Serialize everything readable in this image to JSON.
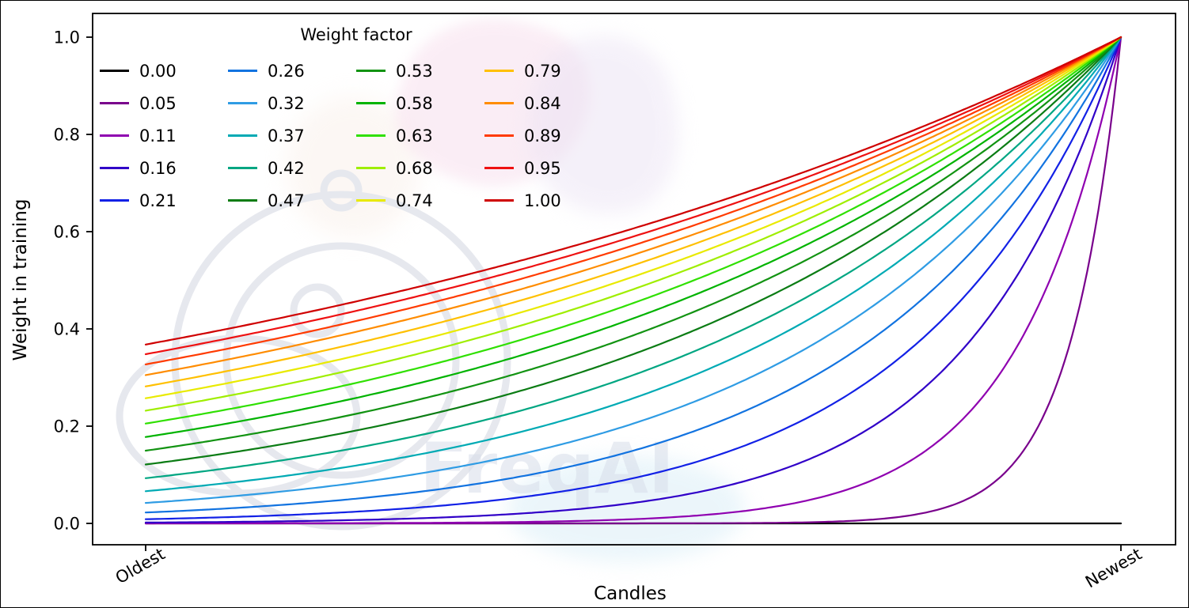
{
  "watermark": {
    "text": "FreqAI"
  },
  "chart_data": {
    "type": "line",
    "title": "",
    "xlabel": "Candles",
    "ylabel": "Weight in training",
    "xtick_labels": [
      "Oldest",
      "Newest"
    ],
    "ytick_labels": [
      "0.0",
      "0.2",
      "0.4",
      "0.6",
      "0.8",
      "1.0"
    ],
    "yticks": [
      0.0,
      0.2,
      0.4,
      0.6,
      0.8,
      1.0
    ],
    "ylim": [
      0,
      1
    ],
    "x_axis": {
      "normalized_range": [
        0,
        1
      ],
      "left_label": "Oldest",
      "right_label": "Newest"
    },
    "grid": false,
    "legend_title": "Weight factor",
    "legend_position": "upper left, 4 columns, column-major order",
    "formula": "weight(x) = exp(-(1 - x) / factor) for x in [0,1] from Oldest to Newest; factor = 0 gives a flat weight of 0",
    "series": [
      {
        "label": "0.00",
        "factor": 0.0,
        "color": "#000000",
        "y_at_oldest": 0.0,
        "y_at_newest": 0.0
      },
      {
        "label": "0.05",
        "factor": 0.0526,
        "color": "#79018c",
        "y_at_oldest": 0.0,
        "y_at_newest": 1.0
      },
      {
        "label": "0.11",
        "factor": 0.1053,
        "color": "#8f00b0",
        "y_at_oldest": 0.0001,
        "y_at_newest": 1.0
      },
      {
        "label": "0.16",
        "factor": 0.1579,
        "color": "#3000c8",
        "y_at_oldest": 0.0018,
        "y_at_newest": 1.0
      },
      {
        "label": "0.21",
        "factor": 0.2105,
        "color": "#1221e6",
        "y_at_oldest": 0.0087,
        "y_at_newest": 1.0
      },
      {
        "label": "0.26",
        "factor": 0.2632,
        "color": "#1273e0",
        "y_at_oldest": 0.0224,
        "y_at_newest": 1.0
      },
      {
        "label": "0.32",
        "factor": 0.3158,
        "color": "#2f9ce4",
        "y_at_oldest": 0.0421,
        "y_at_newest": 1.0
      },
      {
        "label": "0.37",
        "factor": 0.3684,
        "color": "#00aab4",
        "y_at_oldest": 0.0663,
        "y_at_newest": 1.0
      },
      {
        "label": "0.42",
        "factor": 0.4211,
        "color": "#00a682",
        "y_at_oldest": 0.093,
        "y_at_newest": 1.0
      },
      {
        "label": "0.47",
        "factor": 0.4737,
        "color": "#0b7c14",
        "y_at_oldest": 0.1211,
        "y_at_newest": 1.0
      },
      {
        "label": "0.53",
        "factor": 0.5263,
        "color": "#129312",
        "y_at_oldest": 0.1496,
        "y_at_newest": 1.0
      },
      {
        "label": "0.58",
        "factor": 0.5789,
        "color": "#00b300",
        "y_at_oldest": 0.1778,
        "y_at_newest": 1.0
      },
      {
        "label": "0.63",
        "factor": 0.6316,
        "color": "#2fe000",
        "y_at_oldest": 0.2053,
        "y_at_newest": 1.0
      },
      {
        "label": "0.68",
        "factor": 0.6842,
        "color": "#9fee00",
        "y_at_oldest": 0.2319,
        "y_at_newest": 1.0
      },
      {
        "label": "0.74",
        "factor": 0.7368,
        "color": "#e9ea00",
        "y_at_oldest": 0.2574,
        "y_at_newest": 1.0
      },
      {
        "label": "0.79",
        "factor": 0.7895,
        "color": "#ffc000",
        "y_at_oldest": 0.2818,
        "y_at_newest": 1.0
      },
      {
        "label": "0.84",
        "factor": 0.8421,
        "color": "#ff8c00",
        "y_at_oldest": 0.305,
        "y_at_newest": 1.0
      },
      {
        "label": "0.89",
        "factor": 0.8947,
        "color": "#ff3a00",
        "y_at_oldest": 0.327,
        "y_at_newest": 1.0
      },
      {
        "label": "0.95",
        "factor": 0.9474,
        "color": "#ee1111",
        "y_at_oldest": 0.348,
        "y_at_newest": 1.0
      },
      {
        "label": "1.00",
        "factor": 1.0,
        "color": "#cf0000",
        "y_at_oldest": 0.3679,
        "y_at_newest": 1.0
      }
    ]
  }
}
